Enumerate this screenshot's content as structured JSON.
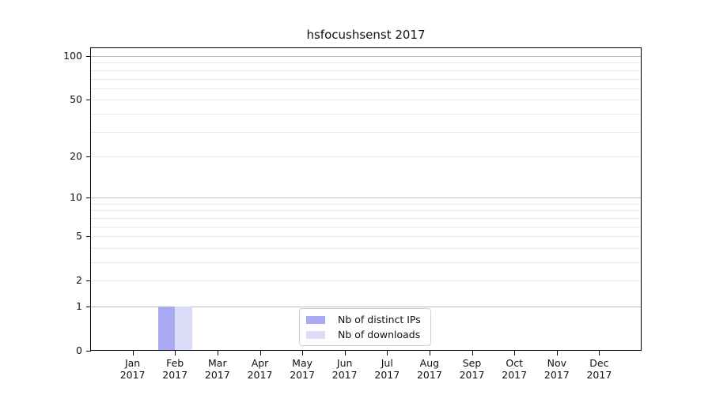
{
  "chart_data": {
    "type": "bar",
    "title": "hsfocushsenst 2017",
    "categories": [
      "Jan",
      "Feb",
      "Mar",
      "Apr",
      "May",
      "Jun",
      "Jul",
      "Aug",
      "Sep",
      "Oct",
      "Nov",
      "Dec"
    ],
    "x_sub_label": "2017",
    "series": [
      {
        "name": "Nb of distinct IPs",
        "color": "#aaaaf4",
        "values": [
          0,
          1,
          0,
          0,
          0,
          0,
          0,
          0,
          0,
          0,
          0,
          0
        ]
      },
      {
        "name": "Nb of downloads",
        "color": "#dcdcf8",
        "values": [
          0,
          1,
          0,
          0,
          0,
          0,
          0,
          0,
          0,
          0,
          0,
          0
        ]
      }
    ],
    "y_ticks": [
      0,
      1,
      2,
      5,
      10,
      20,
      50,
      100
    ],
    "ylim": [
      0,
      100
    ],
    "yscale": "log10(1+v)",
    "grid": {
      "on": true,
      "major_values": [
        1,
        10,
        100
      ],
      "minor_values": [
        2,
        3,
        4,
        5,
        6,
        7,
        8,
        9,
        20,
        30,
        40,
        50,
        60,
        70,
        80,
        90
      ]
    },
    "legend_position": "bottom-center",
    "colors": {
      "axis": "#000000",
      "grid_major": "#bdbdbd",
      "grid_minor": "#eaeaea",
      "text": "#111111",
      "background": "#ffffff"
    }
  }
}
